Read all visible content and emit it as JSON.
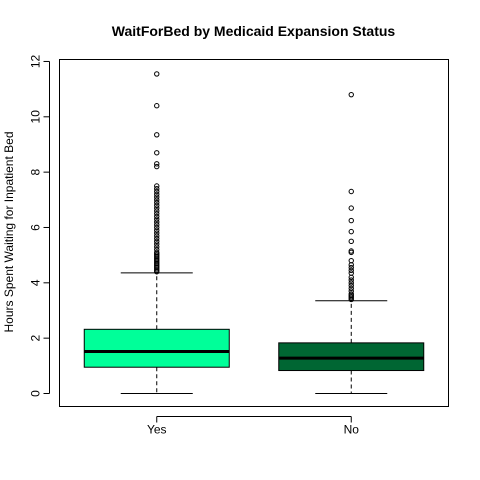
{
  "chart_data": {
    "type": "boxplot",
    "title": "WaitForBed by Medicaid Expansion Status",
    "xlabel": "",
    "ylabel": "Hours Spent Waiting for Inpatient Bed",
    "ylim": [
      -0.45,
      12.1
    ],
    "yticks": [
      "0",
      "2",
      "4",
      "6",
      "8",
      "10",
      "12"
    ],
    "categories": [
      "Yes",
      "No"
    ],
    "boxes": [
      {
        "name": "Yes",
        "color": "#00FF99",
        "whisker_low": 0.0,
        "q1": 0.95,
        "median": 1.52,
        "q3": 2.32,
        "whisker_high": 4.36,
        "outliers": [
          4.4,
          4.45,
          4.5,
          4.55,
          4.6,
          4.65,
          4.7,
          4.75,
          4.8,
          4.85,
          4.9,
          4.95,
          5.0,
          5.05,
          5.1,
          5.2,
          5.3,
          5.4,
          5.5,
          5.6,
          5.7,
          5.8,
          5.9,
          6.0,
          6.1,
          6.2,
          6.3,
          6.4,
          6.5,
          6.6,
          6.7,
          6.8,
          6.9,
          7.0,
          7.1,
          7.2,
          7.3,
          7.4,
          7.5,
          8.2,
          8.3,
          8.7,
          9.35,
          10.4,
          11.55
        ]
      },
      {
        "name": "No",
        "color": "#006633",
        "whisker_low": 0.0,
        "q1": 0.83,
        "median": 1.28,
        "q3": 1.83,
        "whisker_high": 3.35,
        "outliers": [
          3.4,
          3.45,
          3.5,
          3.55,
          3.6,
          3.7,
          3.8,
          3.9,
          4.0,
          4.1,
          4.2,
          4.35,
          4.45,
          4.55,
          4.65,
          4.8,
          5.1,
          5.15,
          5.5,
          5.85,
          6.25,
          6.7,
          7.3,
          10.8
        ]
      }
    ]
  }
}
